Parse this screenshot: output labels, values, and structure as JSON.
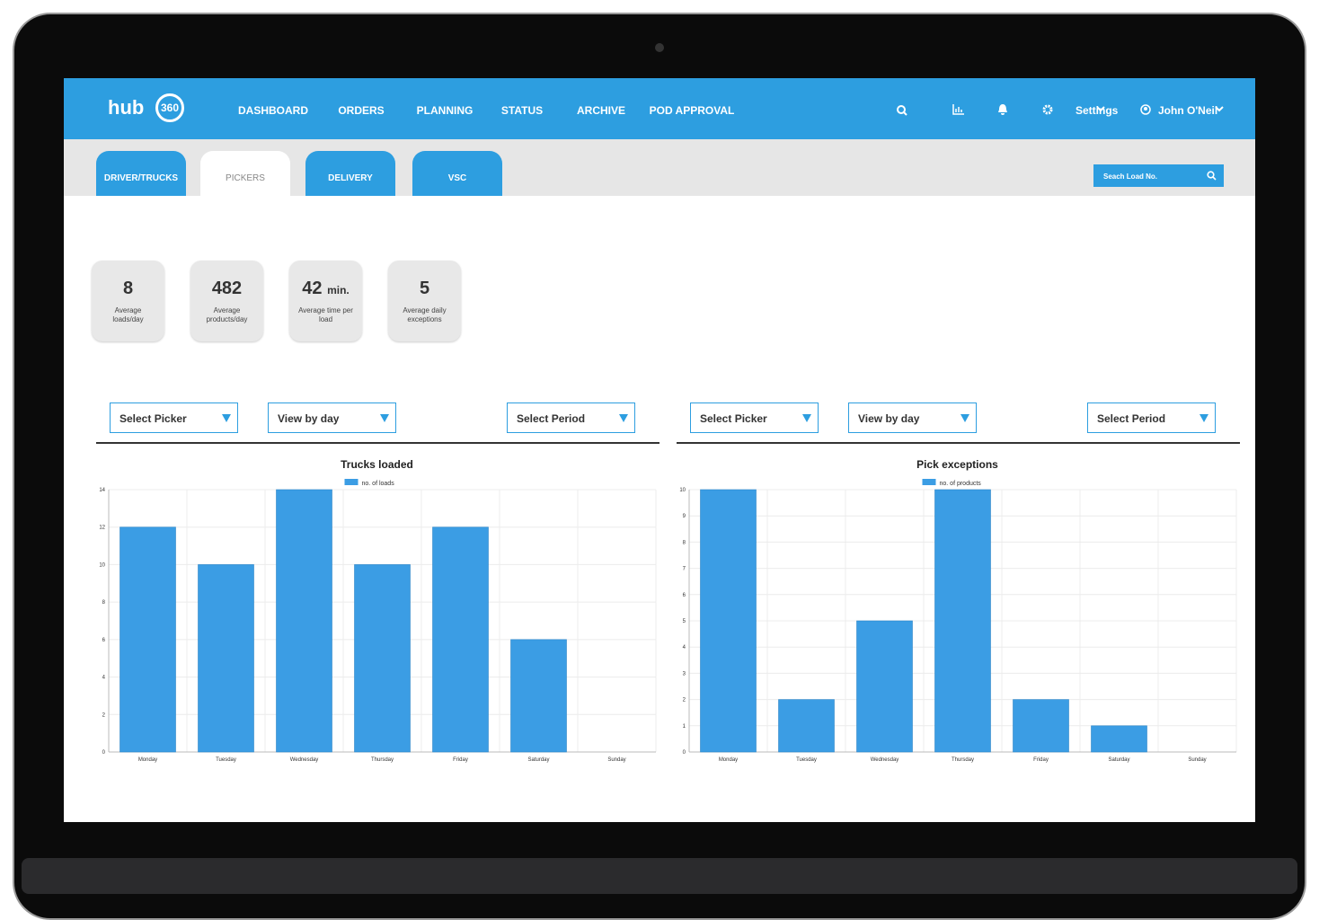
{
  "header": {
    "logo": "hub",
    "logo_badge": "360",
    "nav": [
      "DASHBOARD",
      "ORDERS",
      "PLANNING",
      "STATUS",
      "ARCHIVE",
      "POD APPROVAL"
    ],
    "settings": "Settings",
    "user": "John O'Neil"
  },
  "tabs": [
    "DRIVER/TRUCKS",
    "PICKERS",
    "DELIVERY",
    "VSC"
  ],
  "search_placeholder": "Seach Load No.",
  "stats": [
    {
      "value": 8,
      "label": "Average loads/day"
    },
    {
      "value": 482,
      "label": "Average products/day"
    },
    {
      "value": 42,
      "unit": "min.",
      "label": "Average time per load"
    },
    {
      "value": 5,
      "label": "Average daily exceptions"
    }
  ],
  "filters": [
    [
      "Select Picker",
      "View by day",
      "Select Period"
    ],
    [
      "Select Picker",
      "View by day",
      "Select Period"
    ]
  ],
  "chart_data": [
    {
      "type": "bar",
      "title": "Trucks loaded",
      "categories": [
        "Monday",
        "Tuesday",
        "Wednesday",
        "Thursday",
        "Friday",
        "Saturday",
        "Sunday"
      ],
      "series": [
        {
          "name": "no. of loads",
          "color": "#3b9de4",
          "values": [
            12,
            10,
            14,
            10,
            12,
            6,
            0
          ]
        }
      ],
      "ylim": [
        0,
        14
      ],
      "yticks": [
        0,
        2,
        4,
        6,
        8,
        10,
        12,
        14
      ],
      "grid": true
    },
    {
      "type": "bar",
      "title": "Pick exceptions",
      "categories": [
        "Monday",
        "Tuesday",
        "Wednesday",
        "Thursday",
        "Friday",
        "Saturday",
        "Sunday"
      ],
      "series": [
        {
          "name": "no. of products",
          "color": "#3b9de4",
          "values": [
            10,
            2,
            5,
            10,
            2,
            1,
            0
          ]
        }
      ],
      "ylim": [
        0,
        10
      ],
      "yticks": [
        0,
        1,
        2,
        3,
        4,
        5,
        6,
        7,
        8,
        9,
        10
      ],
      "grid": true
    }
  ]
}
